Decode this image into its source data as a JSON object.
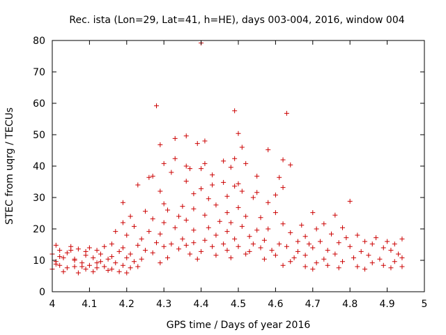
{
  "chart_data": {
    "type": "scatter",
    "title": "Rec. ista (Lon=29, Lat=41, h=HE), days 003-004, 2016, window 004",
    "xlabel": "GPS time / Days of year 2016",
    "ylabel": "STEC from uqrg / TECUs",
    "xlim": [
      4,
      5
    ],
    "ylim": [
      0,
      80
    ],
    "xticks": [
      "4",
      "4.1",
      "4.2",
      "4.3",
      "4.4",
      "4.5",
      "4.6",
      "4.7",
      "4.8",
      "4.9",
      "5"
    ],
    "yticks": [
      "0",
      "10",
      "20",
      "30",
      "40",
      "50",
      "60",
      "70",
      "80"
    ],
    "marker": "+",
    "color": "#cc0000",
    "series": [
      {
        "name": "STEC",
        "points": [
          [
            4.4,
            79.2
          ],
          [
            4.28,
            59.2
          ],
          [
            4.49,
            57.6
          ],
          [
            4.63,
            56.8
          ],
          [
            4.5,
            50.4
          ],
          [
            4.36,
            49.6
          ],
          [
            4.33,
            48.8
          ],
          [
            4.41,
            48.0
          ],
          [
            4.39,
            47.2
          ],
          [
            4.29,
            46.8
          ],
          [
            4.51,
            46.0
          ],
          [
            4.58,
            45.2
          ],
          [
            4.49,
            42.4
          ],
          [
            4.33,
            42.4
          ],
          [
            4.62,
            42.0
          ],
          [
            4.46,
            41.6
          ],
          [
            4.3,
            40.8
          ],
          [
            4.41,
            40.8
          ],
          [
            4.52,
            40.8
          ],
          [
            4.64,
            40.4
          ],
          [
            4.36,
            40.0
          ],
          [
            4.48,
            39.6
          ],
          [
            4.37,
            39.2
          ],
          [
            4.4,
            39.2
          ],
          [
            4.32,
            38.0
          ],
          [
            4.43,
            37.2
          ],
          [
            4.27,
            36.8
          ],
          [
            4.55,
            36.8
          ],
          [
            4.26,
            36.4
          ],
          [
            4.61,
            36.4
          ],
          [
            4.36,
            35.2
          ],
          [
            4.46,
            34.8
          ],
          [
            4.5,
            34.4
          ],
          [
            4.23,
            34.0
          ],
          [
            4.43,
            34.0
          ],
          [
            4.49,
            33.6
          ],
          [
            4.62,
            33.2
          ],
          [
            4.4,
            32.8
          ],
          [
            4.29,
            32.0
          ],
          [
            4.51,
            32.0
          ],
          [
            4.55,
            31.6
          ],
          [
            4.38,
            31.2
          ],
          [
            4.6,
            30.8
          ],
          [
            4.47,
            30.4
          ],
          [
            4.54,
            30.0
          ],
          [
            4.42,
            29.6
          ],
          [
            4.19,
            28.4
          ],
          [
            4.3,
            28.0
          ],
          [
            4.58,
            28.4
          ],
          [
            4.8,
            28.8
          ],
          [
            4.35,
            27.2
          ],
          [
            4.44,
            27.6
          ],
          [
            4.5,
            26.8
          ],
          [
            4.38,
            26.4
          ],
          [
            4.31,
            26.0
          ],
          [
            4.25,
            25.6
          ],
          [
            4.47,
            25.2
          ],
          [
            4.6,
            25.2
          ],
          [
            4.7,
            25.2
          ],
          [
            4.76,
            24.4
          ],
          [
            4.21,
            24.0
          ],
          [
            4.34,
            24.0
          ],
          [
            4.41,
            24.4
          ],
          [
            4.52,
            24.0
          ],
          [
            4.56,
            23.6
          ],
          [
            4.27,
            23.2
          ],
          [
            4.36,
            22.8
          ],
          [
            4.45,
            22.4
          ],
          [
            4.19,
            22.0
          ],
          [
            4.3,
            22.0
          ],
          [
            4.48,
            22.0
          ],
          [
            4.62,
            21.6
          ],
          [
            4.67,
            21.2
          ],
          [
            4.73,
            21.6
          ],
          [
            4.22,
            20.8
          ],
          [
            4.33,
            20.4
          ],
          [
            4.42,
            20.4
          ],
          [
            4.51,
            20.8
          ],
          [
            4.58,
            20.0
          ],
          [
            4.71,
            20.0
          ],
          [
            4.78,
            20.4
          ],
          [
            4.17,
            19.2
          ],
          [
            4.26,
            19.2
          ],
          [
            4.38,
            19.6
          ],
          [
            4.47,
            19.2
          ],
          [
            4.55,
            19.6
          ],
          [
            4.64,
            18.8
          ],
          [
            4.75,
            18.4
          ],
          [
            4.82,
            18.0
          ],
          [
            4.2,
            18.0
          ],
          [
            4.29,
            18.4
          ],
          [
            4.44,
            18.0
          ],
          [
            4.53,
            17.6
          ],
          [
            4.68,
            17.6
          ],
          [
            4.79,
            17.2
          ],
          [
            4.87,
            17.2
          ],
          [
            4.24,
            16.8
          ],
          [
            4.35,
            16.8
          ],
          [
            4.41,
            16.4
          ],
          [
            4.49,
            16.8
          ],
          [
            4.57,
            16.4
          ],
          [
            4.66,
            16.0
          ],
          [
            4.72,
            16.0
          ],
          [
            4.84,
            16.0
          ],
          [
            4.9,
            16.0
          ],
          [
            4.94,
            16.8
          ],
          [
            4.16,
            15.2
          ],
          [
            4.28,
            15.6
          ],
          [
            4.32,
            15.2
          ],
          [
            4.38,
            15.6
          ],
          [
            4.46,
            15.2
          ],
          [
            4.54,
            15.2
          ],
          [
            4.61,
            15.2
          ],
          [
            4.69,
            15.2
          ],
          [
            4.77,
            15.6
          ],
          [
            4.86,
            15.2
          ],
          [
            4.92,
            15.2
          ],
          [
            4.01,
            14.8
          ],
          [
            4.05,
            14.4
          ],
          [
            4.1,
            14.0
          ],
          [
            4.14,
            14.4
          ],
          [
            4.19,
            14.0
          ],
          [
            4.23,
            14.8
          ],
          [
            4.3,
            14.4
          ],
          [
            4.36,
            14.8
          ],
          [
            4.43,
            14.4
          ],
          [
            4.5,
            14.4
          ],
          [
            4.56,
            14.0
          ],
          [
            4.63,
            14.4
          ],
          [
            4.7,
            14.0
          ],
          [
            4.8,
            14.4
          ],
          [
            4.89,
            14.0
          ],
          [
            4.02,
            13.2
          ],
          [
            4.07,
            13.6
          ],
          [
            4.12,
            13.2
          ],
          [
            4.18,
            12.8
          ],
          [
            4.25,
            13.2
          ],
          [
            4.34,
            13.6
          ],
          [
            4.4,
            12.8
          ],
          [
            4.47,
            13.2
          ],
          [
            4.53,
            12.8
          ],
          [
            4.59,
            13.2
          ],
          [
            4.66,
            12.8
          ],
          [
            4.74,
            13.2
          ],
          [
            4.83,
            12.8
          ],
          [
            4.91,
            13.2
          ],
          [
            4.0,
            12.0
          ],
          [
            4.04,
            12.4
          ],
          [
            4.09,
            11.6
          ],
          [
            4.13,
            12.0
          ],
          [
            4.21,
            12.0
          ],
          [
            4.27,
            12.4
          ],
          [
            4.37,
            12.0
          ],
          [
            4.44,
            11.6
          ],
          [
            4.52,
            12.0
          ],
          [
            4.6,
            11.6
          ],
          [
            4.68,
            11.6
          ],
          [
            4.76,
            12.0
          ],
          [
            4.85,
            11.6
          ],
          [
            4.93,
            12.0
          ],
          [
            4.03,
            10.8
          ],
          [
            4.06,
            10.4
          ],
          [
            4.11,
            10.8
          ],
          [
            4.15,
            10.4
          ],
          [
            4.2,
            10.8
          ],
          [
            4.24,
            10.4
          ],
          [
            4.31,
            10.8
          ],
          [
            4.39,
            10.4
          ],
          [
            4.48,
            10.8
          ],
          [
            4.57,
            10.4
          ],
          [
            4.65,
            10.8
          ],
          [
            4.73,
            10.4
          ],
          [
            4.81,
            10.8
          ],
          [
            4.88,
            10.4
          ],
          [
            4.94,
            10.8
          ],
          [
            4.01,
            9.6
          ],
          [
            4.08,
            9.2
          ],
          [
            4.13,
            9.6
          ],
          [
            4.17,
            9.2
          ],
          [
            4.22,
            9.6
          ],
          [
            4.29,
            9.2
          ],
          [
            4.64,
            9.6
          ],
          [
            4.71,
            9.2
          ],
          [
            4.78,
            9.6
          ],
          [
            4.86,
            9.2
          ],
          [
            4.92,
            9.6
          ],
          [
            4.02,
            8.4
          ],
          [
            4.06,
            8.0
          ],
          [
            4.1,
            8.4
          ],
          [
            4.14,
            8.0
          ],
          [
            4.19,
            8.4
          ],
          [
            4.23,
            8.0
          ],
          [
            4.62,
            8.4
          ],
          [
            4.68,
            8.0
          ],
          [
            4.74,
            8.4
          ],
          [
            4.82,
            8.0
          ],
          [
            4.89,
            8.4
          ],
          [
            4.94,
            8.0
          ],
          [
            4.0,
            7.2
          ],
          [
            4.04,
            7.6
          ],
          [
            4.09,
            7.2
          ],
          [
            4.12,
            7.6
          ],
          [
            4.16,
            7.2
          ],
          [
            4.21,
            7.6
          ],
          [
            4.7,
            7.2
          ],
          [
            4.77,
            7.6
          ],
          [
            4.84,
            7.2
          ],
          [
            4.91,
            7.6
          ],
          [
            4.03,
            6.4
          ],
          [
            4.07,
            6.0
          ],
          [
            4.11,
            6.4
          ],
          [
            4.15,
            6.8
          ],
          [
            4.18,
            6.4
          ],
          [
            4.2,
            6.0
          ],
          [
            4.05,
            13.2
          ],
          [
            4.09,
            12.8
          ],
          [
            4.02,
            11.2
          ],
          [
            4.06,
            10.0
          ],
          [
            4.16,
            11.2
          ],
          [
            4.12,
            9.2
          ],
          [
            4.08,
            8.0
          ],
          [
            4.01,
            8.8
          ]
        ]
      }
    ]
  }
}
